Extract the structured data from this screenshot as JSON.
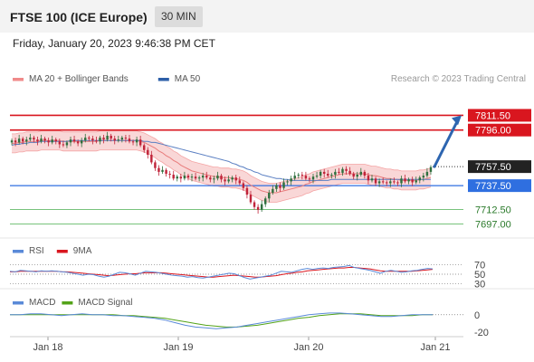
{
  "header": {
    "title": "FTSE 100 (ICE Europe)",
    "interval": "30 MIN",
    "datetime": "Friday, January 20, 2023 9:46:38 PM CET"
  },
  "copyright": "Research © 2023 Trading Central",
  "colors": {
    "bollinger_fill": "#f9d7d7",
    "bollinger_line": "#f4a4a4",
    "ma20": "#e87c7c",
    "ma50": "#5a7fc2",
    "candle_up": "#2f6f3e",
    "candle_down": "#c0243a",
    "resistance": "#d9161f",
    "support": "#2f6fe0",
    "target": "#4caf50",
    "arrow": "#2d65b0",
    "rsi": "#5a8ad8",
    "rsi_ma": "#d9161f",
    "macd": "#5a8ad8",
    "macd_signal": "#53a318"
  },
  "chart_data": [
    {
      "type": "candlestick",
      "legend": [
        {
          "label": "MA 20 + Bollinger Bands",
          "color": "#f08a8a"
        },
        {
          "label": "MA 50",
          "color": "#2d5fa8"
        }
      ],
      "x_labels": [
        "Jan 18",
        "Jan 19",
        "Jan 20",
        "Jan 21"
      ],
      "ylim": [
        7690,
        7830
      ],
      "levels": [
        {
          "value": 7811.5,
          "label": "7811.50",
          "kind": "resistance"
        },
        {
          "value": 7796.0,
          "label": "7796.00",
          "kind": "resistance"
        },
        {
          "value": 7757.5,
          "label": "7757.50",
          "kind": "last"
        },
        {
          "value": 7737.5,
          "label": "7737.50",
          "kind": "support"
        },
        {
          "value": 7712.5,
          "label": "7712.50",
          "kind": "target"
        },
        {
          "value": 7697.0,
          "label": "7697.00",
          "kind": "target"
        }
      ],
      "closes": [
        7785,
        7783,
        7787,
        7784,
        7786,
        7788,
        7786,
        7784,
        7787,
        7785,
        7783,
        7786,
        7784,
        7781,
        7780,
        7783,
        7786,
        7784,
        7782,
        7785,
        7788,
        7787,
        7785,
        7784,
        7788,
        7786,
        7790,
        7787,
        7785,
        7786,
        7788,
        7787,
        7784,
        7783,
        7786,
        7780,
        7775,
        7770,
        7762,
        7756,
        7752,
        7754,
        7750,
        7749,
        7745,
        7747,
        7745,
        7748,
        7746,
        7747,
        7745,
        7746,
        7748,
        7746,
        7744,
        7745,
        7748,
        7744,
        7742,
        7744,
        7746,
        7743,
        7740,
        7735,
        7728,
        7720,
        7715,
        7712,
        7718,
        7724,
        7730,
        7734,
        7738,
        7735,
        7741,
        7742,
        7745,
        7748,
        7749,
        7748,
        7745,
        7744,
        7747,
        7748,
        7752,
        7750,
        7748,
        7749,
        7752,
        7751,
        7755,
        7753,
        7750,
        7747,
        7749,
        7752,
        7748,
        7743,
        7745,
        7740,
        7742,
        7741,
        7740,
        7742,
        7741,
        7740,
        7745,
        7742,
        7744,
        7741,
        7743,
        7746,
        7748,
        7752,
        7757
      ],
      "ma20": [
        7782,
        7782,
        7783,
        7783,
        7784,
        7784,
        7784,
        7784,
        7785,
        7785,
        7785,
        7785,
        7785,
        7785,
        7784,
        7784,
        7784,
        7784,
        7784,
        7784,
        7784,
        7784,
        7784,
        7784,
        7785,
        7785,
        7785,
        7785,
        7785,
        7785,
        7785,
        7785,
        7785,
        7785,
        7785,
        7784,
        7783,
        7781,
        7779,
        7777,
        7774,
        7772,
        7769,
        7767,
        7764,
        7762,
        7759,
        7757,
        7755,
        7753,
        7752,
        7751,
        7750,
        7749,
        7748,
        7747,
        7747,
        7746,
        7746,
        7746,
        7745,
        7745,
        7744,
        7743,
        7741,
        7738,
        7736,
        7734,
        7732,
        7731,
        7730,
        7730,
        7730,
        7731,
        7732,
        7733,
        7734,
        7735,
        7736,
        7737,
        7739,
        7740,
        7742,
        7743,
        7744,
        7745,
        7746,
        7747,
        7748,
        7749,
        7750,
        7750,
        7750,
        7750,
        7750,
        7750,
        7750,
        7749,
        7748,
        7748,
        7747,
        7746,
        7745,
        7745,
        7744,
        7744,
        7743,
        7743,
        7743,
        7743,
        7743,
        7744,
        7744,
        7745,
        7746
      ],
      "ma50": [
        7780,
        7781,
        7781,
        7782,
        7782,
        7783,
        7783,
        7783,
        7784,
        7784,
        7784,
        7784,
        7784,
        7784,
        7784,
        7784,
        7785,
        7785,
        7785,
        7785,
        7785,
        7785,
        7785,
        7785,
        7785,
        7785,
        7785,
        7785,
        7785,
        7785,
        7785,
        7785,
        7785,
        7785,
        7785,
        7785,
        7784,
        7784,
        7783,
        7783,
        7782,
        7781,
        7780,
        7779,
        7778,
        7777,
        7776,
        7775,
        7774,
        7773,
        7772,
        7771,
        7770,
        7769,
        7768,
        7767,
        7766,
        7765,
        7764,
        7763,
        7761,
        7760,
        7758,
        7757,
        7755,
        7754,
        7752,
        7751,
        7749,
        7748,
        7747,
        7746,
        7745,
        7745,
        7744,
        7744,
        7743,
        7743,
        7743,
        7743,
        7743,
        7743,
        7743,
        7743,
        7743,
        7743,
        7743,
        7744,
        7744,
        7744,
        7744,
        7744,
        7744,
        7744,
        7744,
        7744,
        7744,
        7744,
        7744,
        7744,
        7744,
        7744,
        7744,
        7744,
        7744,
        7744,
        7744,
        7744,
        7744,
        7744,
        7744,
        7744,
        7744,
        7744,
        7744
      ],
      "bb_width": 10,
      "projection": {
        "from": 7757.5,
        "to": 7811.5
      }
    },
    {
      "type": "line",
      "name": "RSI",
      "legend": [
        {
          "label": "RSI",
          "color": "#5a8ad8"
        },
        {
          "label": "9MA",
          "color": "#d9161f"
        }
      ],
      "ylim": [
        20,
        80
      ],
      "ticks": [
        {
          "value": 70,
          "label": "70"
        },
        {
          "value": 50,
          "label": "50"
        },
        {
          "value": 30,
          "label": "30"
        }
      ],
      "rsi": [
        56,
        55,
        58,
        57,
        56,
        55,
        57,
        56,
        57,
        56,
        55,
        54,
        52,
        50,
        48,
        50,
        49,
        46,
        44,
        46,
        50,
        54,
        53,
        51,
        48,
        52,
        56,
        55,
        54,
        52,
        50,
        48,
        47,
        46,
        44,
        45,
        43,
        42,
        44,
        46,
        48,
        50,
        52,
        51,
        47,
        43,
        40,
        42,
        44,
        46,
        48,
        52,
        56,
        55,
        54,
        57,
        60,
        62,
        60,
        62,
        63,
        62,
        64,
        65,
        66,
        68,
        64,
        62,
        60,
        58,
        55,
        52,
        56,
        58,
        56,
        54,
        55,
        57,
        58,
        60,
        62,
        61
      ],
      "rsi_ma": [
        55,
        55,
        56,
        56,
        56,
        56,
        56,
        56,
        56,
        56,
        55,
        55,
        54,
        53,
        52,
        51,
        50,
        49,
        48,
        47,
        48,
        49,
        50,
        51,
        51,
        52,
        53,
        53,
        53,
        53,
        52,
        51,
        50,
        49,
        48,
        47,
        46,
        45,
        44,
        44,
        45,
        46,
        47,
        48,
        47,
        46,
        45,
        44,
        44,
        45,
        46,
        47,
        49,
        51,
        52,
        54,
        55,
        57,
        58,
        59,
        60,
        61,
        62,
        63,
        63,
        64,
        64,
        63,
        62,
        61,
        59,
        57,
        56,
        56,
        56,
        56,
        56,
        56,
        57,
        58,
        59,
        60
      ]
    },
    {
      "type": "line",
      "name": "MACD",
      "legend": [
        {
          "label": "MACD",
          "color": "#5a8ad8"
        },
        {
          "label": "MACD Signal",
          "color": "#53a318"
        }
      ],
      "ylim": [
        -25,
        8
      ],
      "ticks": [
        {
          "value": 0,
          "label": "0"
        },
        {
          "value": -20,
          "label": "-20"
        }
      ],
      "macd": [
        0,
        0,
        1,
        1,
        0,
        -1,
        0,
        1,
        0,
        0,
        -1,
        -1,
        -2,
        -3,
        -4,
        -6,
        -9,
        -12,
        -14,
        -15,
        -16,
        -15,
        -14,
        -12,
        -10,
        -8,
        -6,
        -4,
        -2,
        0,
        1,
        2,
        2,
        1,
        0,
        -1,
        -2,
        -2,
        -1,
        0,
        0,
        0
      ],
      "macd_signal": [
        0,
        0,
        0,
        0,
        0,
        0,
        0,
        0,
        0,
        0,
        0,
        -1,
        -1,
        -2,
        -3,
        -4,
        -6,
        -8,
        -10,
        -12,
        -13,
        -14,
        -14,
        -13,
        -12,
        -10,
        -8,
        -6,
        -4,
        -3,
        -1,
        0,
        1,
        1,
        1,
        0,
        -1,
        -1,
        -1,
        -1,
        0,
        0
      ]
    }
  ]
}
